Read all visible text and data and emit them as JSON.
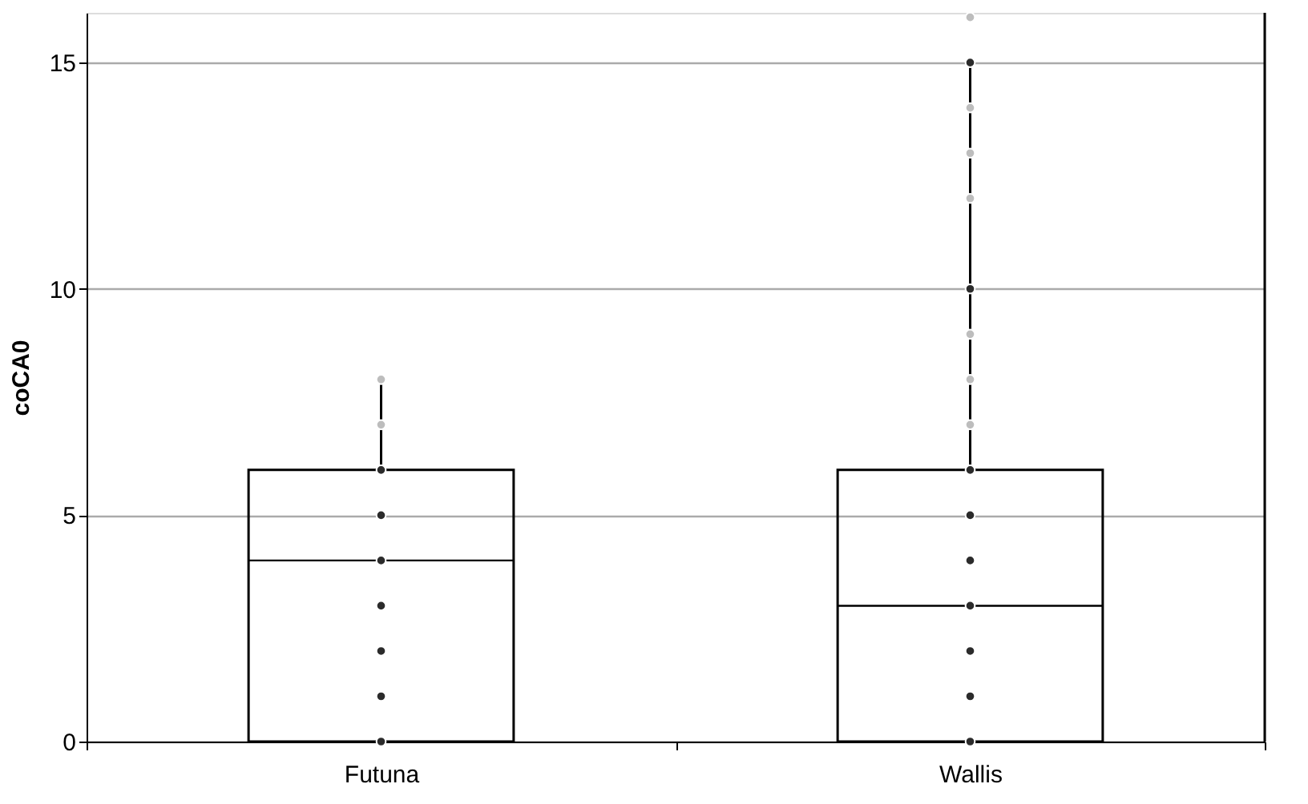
{
  "chart_data": {
    "type": "box",
    "ylabel": "coCA0",
    "categories": [
      "Futuna",
      "Wallis"
    ],
    "ylim": [
      0,
      16.1
    ],
    "yticks": [
      0,
      5,
      10,
      15
    ],
    "grid": "y",
    "marker": "circle",
    "series": [
      {
        "color": "#000000",
        "boxes": [
          {
            "low": 0,
            "q1": 0,
            "median": 4,
            "q3": 6,
            "high": 8
          },
          {
            "low": 0,
            "q1": 0,
            "median": 3,
            "q3": 6,
            "high": 15
          }
        ]
      },
      {
        "type": "scatter",
        "color": "#2b2b2b",
        "x": [
          "Futuna",
          "Futuna",
          "Futuna",
          "Futuna",
          "Futuna",
          "Futuna",
          "Futuna",
          "Wallis",
          "Wallis",
          "Wallis",
          "Wallis",
          "Wallis",
          "Wallis",
          "Wallis",
          "Wallis",
          "Wallis"
        ],
        "values": [
          0,
          1,
          2,
          3,
          4,
          5,
          6,
          0,
          1,
          2,
          3,
          4,
          5,
          6,
          10,
          15
        ]
      },
      {
        "type": "scatter",
        "color": "#bdbdbd",
        "x": [
          "Futuna",
          "Futuna",
          "Wallis",
          "Wallis",
          "Wallis",
          "Wallis",
          "Wallis",
          "Wallis",
          "Wallis"
        ],
        "values": [
          7,
          8,
          7,
          8,
          9,
          12,
          13,
          14,
          16
        ]
      }
    ]
  }
}
